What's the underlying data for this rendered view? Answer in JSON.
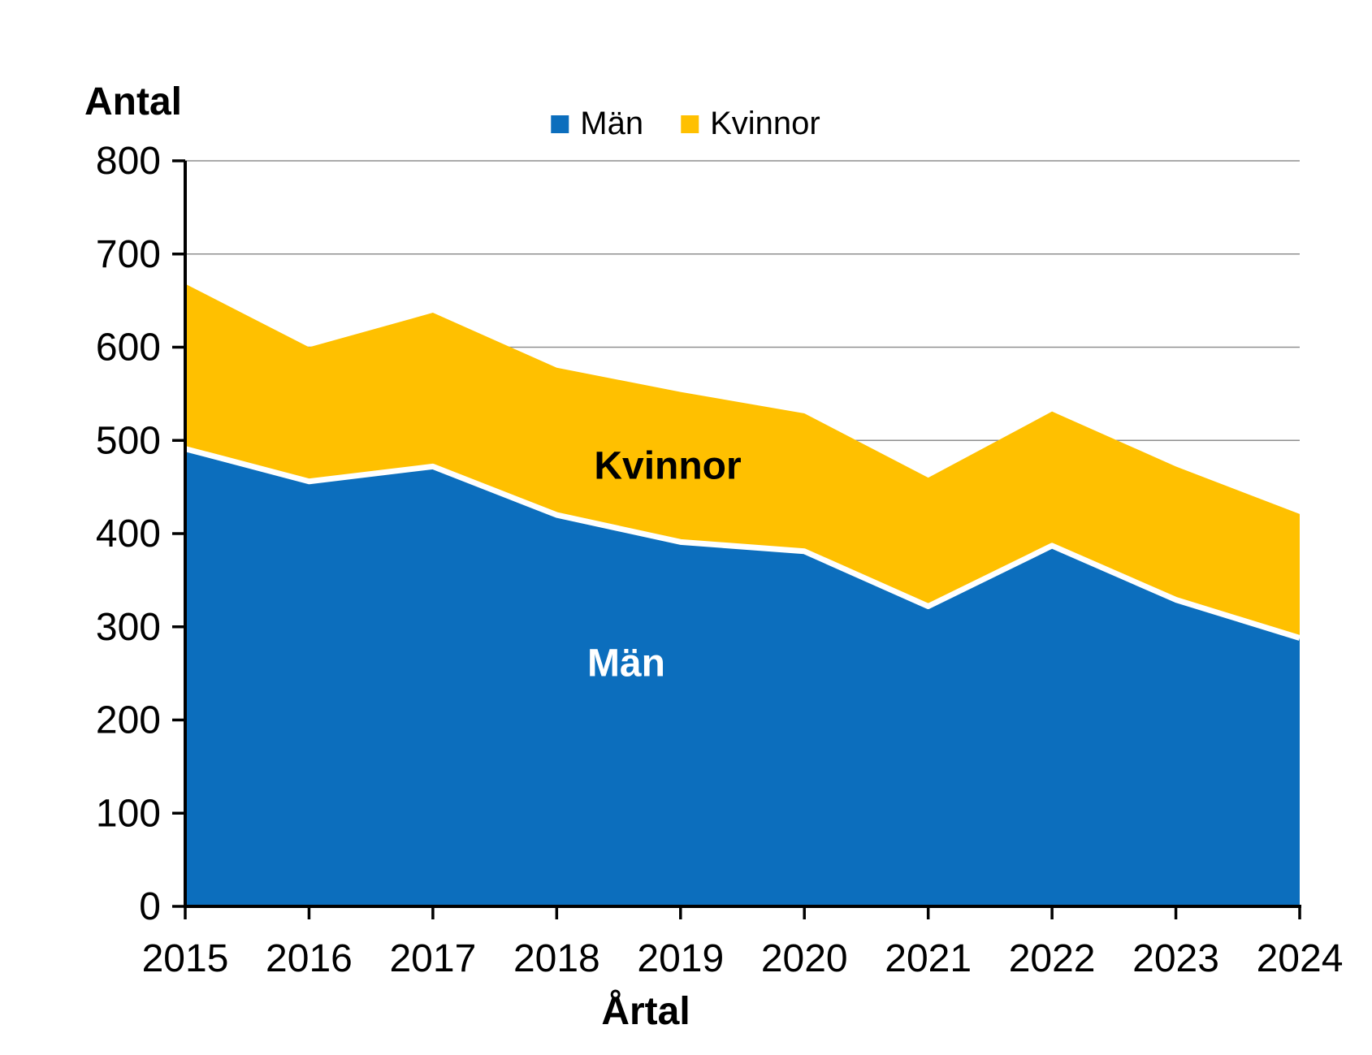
{
  "chart": {
    "y_axis_title": "Antal",
    "x_axis_title": "Årtal",
    "legend": [
      {
        "label": "Män",
        "color": "#0c6ebd"
      },
      {
        "label": "Kvinnor",
        "color": "#ffc000"
      }
    ],
    "area_labels": [
      {
        "text": "Män",
        "color": "#ffffff"
      },
      {
        "text": "Kvinnor",
        "color": "#000000"
      }
    ]
  },
  "chart_data": {
    "type": "area",
    "stacked": true,
    "title": "Antal",
    "xlabel": "Årtal",
    "ylabel": "Antal",
    "x": [
      2015,
      2016,
      2017,
      2018,
      2019,
      2020,
      2021,
      2022,
      2023,
      2024
    ],
    "series": [
      {
        "name": "Män",
        "color": "#0c6ebd",
        "values": [
          491,
          456,
          472,
          420,
          391,
          381,
          322,
          387,
          329,
          288
        ]
      },
      {
        "name": "Kvinnor",
        "color": "#ffc000",
        "values": [
          177,
          144,
          165,
          158,
          161,
          148,
          138,
          144,
          143,
          133
        ]
      }
    ],
    "stacked_totals": [
      668,
      600,
      637,
      578,
      552,
      529,
      460,
      531,
      472,
      421
    ],
    "ylim": [
      0,
      800
    ],
    "yticks": [
      0,
      100,
      200,
      300,
      400,
      500,
      600,
      700,
      800
    ],
    "grid": true,
    "gridline_color": "#8f8f8f",
    "axis_color": "#000000",
    "series_divider_color": "#ffffff",
    "legend_position": "top-center"
  }
}
